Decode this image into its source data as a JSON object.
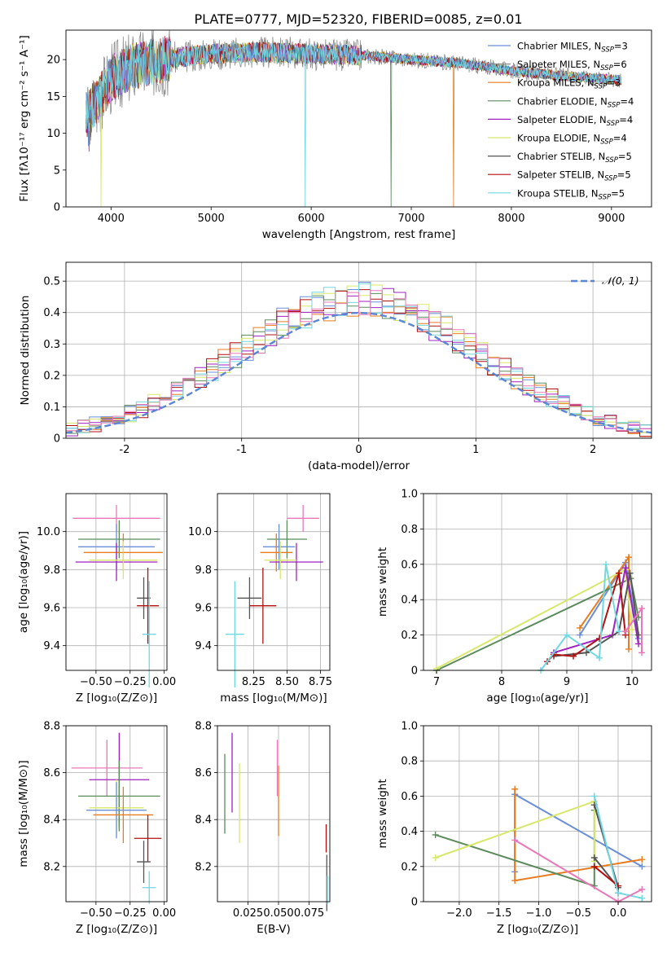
{
  "title": "PLATE=0777, MJD=52320, FIBERID=0085, z=0.01",
  "palette": {
    "Chabrier MILES": "#6a8fd8",
    "Salpeter MILES": "#8c8c8c",
    "Kroupa MILES": "#e87c1e",
    "Chabrier ELODIE": "#5b8a5b",
    "Salpeter ELODIE": "#a020c0",
    "Kroupa ELODIE": "#d8e86a",
    "Chabrier STELIB": "#555555",
    "Salpeter STELIB": "#b01010",
    "Kroupa STELIB": "#70d8e0",
    "pink": "#e878b8"
  },
  "chart_data": [
    {
      "id": "spectrum",
      "type": "line",
      "title": "PLATE=0777, MJD=52320, FIBERID=0085, z=0.01",
      "xlabel": "wavelength [Angstrom, rest frame]",
      "ylabel": "Flux [fλ10⁻¹⁷ erg cm⁻² s⁻¹ A⁻¹]",
      "xlim": [
        3550,
        9400
      ],
      "ylim": [
        0,
        24
      ],
      "xticks": [
        4000,
        5000,
        6000,
        7000,
        8000,
        9000
      ],
      "yticks": [
        0,
        5,
        10,
        15,
        20
      ],
      "grid": false,
      "legend_position": "top-right",
      "legend": [
        {
          "model": "Chabrier MILES",
          "n": "3",
          "label_prefix": "Chabrier MILES, N",
          "label_suffix": "=3"
        },
        {
          "model": "Salpeter MILES",
          "n": "6",
          "label_prefix": "Salpeter MILES, N",
          "label_suffix": "=6"
        },
        {
          "model": "Kroupa MILES",
          "n": "3",
          "label_prefix": "Kroupa MILES, N",
          "label_suffix": "=3"
        },
        {
          "model": "Chabrier ELODIE",
          "n": "4",
          "label_prefix": "Chabrier ELODIE, N",
          "label_suffix": "=4"
        },
        {
          "model": "Salpeter ELODIE",
          "n": "4",
          "label_prefix": "Salpeter ELODIE, N",
          "label_suffix": "=4"
        },
        {
          "model": "Kroupa ELODIE",
          "n": "4",
          "label_prefix": "Kroupa ELODIE, N",
          "label_suffix": "=4"
        },
        {
          "model": "Chabrier STELIB",
          "n": "5",
          "label_prefix": "Chabrier STELIB, N",
          "label_suffix": "=5"
        },
        {
          "model": "Salpeter STELIB",
          "n": "5",
          "label_prefix": "Salpeter STELIB, N",
          "label_suffix": "=5"
        },
        {
          "model": "Kroupa STELIB",
          "n": "5",
          "label_prefix": "Kroupa STELIB, N",
          "label_suffix": "=5"
        }
      ],
      "legend_sub": "SSP",
      "continuum": [
        [
          3750,
          13
        ],
        [
          3850,
          14
        ],
        [
          4000,
          17.5
        ],
        [
          4200,
          19
        ],
        [
          4500,
          20
        ],
        [
          5000,
          20.8
        ],
        [
          5500,
          21
        ],
        [
          6000,
          20.8
        ],
        [
          6500,
          20.6
        ],
        [
          7000,
          20
        ],
        [
          7500,
          19.5
        ],
        [
          8000,
          18.5
        ],
        [
          8500,
          17.8
        ],
        [
          9100,
          17.2
        ]
      ],
      "drops": [
        {
          "model": "Kroupa ELODIE",
          "x": 3900
        },
        {
          "model": "Kroupa STELIB",
          "x": 5940
        },
        {
          "model": "Chabrier ELODIE",
          "x": 6800
        },
        {
          "model": "Kroupa MILES",
          "x": 7420
        }
      ]
    },
    {
      "id": "residuals",
      "type": "histogram",
      "xlabel": "(data-model)/error",
      "ylabel": "Normed distribution",
      "xlim": [
        -2.5,
        2.5
      ],
      "ylim": [
        0,
        0.56
      ],
      "xticks": [
        -2,
        -1,
        0,
        1,
        2
      ],
      "yticks": [
        0.0,
        0.1,
        0.2,
        0.3,
        0.4,
        0.5
      ],
      "grid": true,
      "legend_position": "top-right",
      "gaussian_label": "𝒩(0, 1)",
      "bin_width": 0.1,
      "x_start": -2.5,
      "series": [
        {
          "model": "Chabrier MILES",
          "seed": 1
        },
        {
          "model": "Kroupa MILES",
          "seed": 2
        },
        {
          "model": "Chabrier ELODIE",
          "seed": 3
        },
        {
          "model": "Salpeter ELODIE",
          "seed": 4
        },
        {
          "model": "Kroupa ELODIE",
          "seed": 5
        },
        {
          "model": "Salpeter STELIB",
          "seed": 6
        },
        {
          "model": "Kroupa STELIB",
          "seed": 7
        },
        {
          "model": "pink",
          "seed": 8
        }
      ]
    },
    {
      "id": "z-age",
      "type": "errorbar",
      "xlabel": "Z [log₁₀(Z/Z⊙)]",
      "ylabel": "age  [log₁₀(age/yr)]",
      "xlim": [
        -0.72,
        0.02
      ],
      "ylim": [
        9.27,
        10.2
      ],
      "xticks": [
        -0.5,
        -0.25,
        0.0
      ],
      "xticklabels": [
        "−0.50",
        "−0.25",
        "0.00"
      ],
      "yticks": [
        9.4,
        9.6,
        9.8,
        10.0
      ],
      "grid": true,
      "points": [
        {
          "model": "pink",
          "x": -0.35,
          "xerr": 0.32,
          "y": 10.07,
          "yerr": 0.07
        },
        {
          "model": "Chabrier ELODIE",
          "x": -0.33,
          "xerr": 0.3,
          "y": 9.96,
          "yerr": 0.1
        },
        {
          "model": "Chabrier MILES",
          "x": -0.35,
          "xerr": 0.28,
          "y": 9.92,
          "yerr": 0.12
        },
        {
          "model": "Kroupa MILES",
          "x": -0.3,
          "xerr": 0.29,
          "y": 9.89,
          "yerr": 0.1
        },
        {
          "model": "Salpeter ELODIE",
          "x": -0.35,
          "xerr": 0.3,
          "y": 9.84,
          "yerr": 0.1
        },
        {
          "model": "Kroupa ELODIE",
          "x": -0.3,
          "xerr": 0.25,
          "y": 9.85,
          "yerr": 0.1
        },
        {
          "model": "Chabrier STELIB",
          "x": -0.15,
          "xerr": 0.05,
          "y": 9.65,
          "yerr": 0.11
        },
        {
          "model": "Salpeter STELIB",
          "x": -0.12,
          "xerr": 0.08,
          "y": 9.61,
          "yerr": 0.2
        },
        {
          "model": "Kroupa STELIB",
          "x": -0.11,
          "xerr": 0.05,
          "y": 9.46,
          "yerr": 0.28
        }
      ]
    },
    {
      "id": "mass-age",
      "type": "errorbar",
      "xlabel": "mass [log₁₀(M/M⊙)]",
      "ylabel": "",
      "xlim": [
        7.98,
        8.82
      ],
      "ylim": [
        9.27,
        10.2
      ],
      "xticks": [
        8.25,
        8.5,
        8.75
      ],
      "xticklabels": [
        "8.25",
        "8.50",
        "8.75"
      ],
      "yticks": [
        9.4,
        9.6,
        9.8,
        10.0
      ],
      "grid": true,
      "points": [
        {
          "model": "pink",
          "x": 8.62,
          "xerr": 0.12,
          "y": 10.07,
          "yerr": 0.07
        },
        {
          "model": "Chabrier ELODIE",
          "x": 8.5,
          "xerr": 0.15,
          "y": 9.96,
          "yerr": 0.1
        },
        {
          "model": "Chabrier MILES",
          "x": 8.44,
          "xerr": 0.12,
          "y": 9.92,
          "yerr": 0.12
        },
        {
          "model": "Kroupa MILES",
          "x": 8.42,
          "xerr": 0.12,
          "y": 9.89,
          "yerr": 0.1
        },
        {
          "model": "Salpeter ELODIE",
          "x": 8.57,
          "xerr": 0.2,
          "y": 9.84,
          "yerr": 0.1
        },
        {
          "model": "Kroupa ELODIE",
          "x": 8.45,
          "xerr": 0.12,
          "y": 9.85,
          "yerr": 0.1
        },
        {
          "model": "Chabrier STELIB",
          "x": 8.22,
          "xerr": 0.09,
          "y": 9.65,
          "yerr": 0.11
        },
        {
          "model": "Salpeter STELIB",
          "x": 8.32,
          "xerr": 0.1,
          "y": 9.61,
          "yerr": 0.2
        },
        {
          "model": "Kroupa STELIB",
          "x": 8.11,
          "xerr": 0.07,
          "y": 9.46,
          "yerr": 0.28
        }
      ]
    },
    {
      "id": "age-weight",
      "type": "line",
      "xlabel": "age  [log₁₀(age/yr)]",
      "ylabel": "mass weight",
      "xlim": [
        6.8,
        10.3
      ],
      "ylim": [
        0,
        1
      ],
      "xticks": [
        7,
        8,
        9,
        10
      ],
      "yticks": [
        0.0,
        0.2,
        0.4,
        0.6,
        0.8,
        1.0
      ],
      "grid": true,
      "series": [
        {
          "model": "Chabrier MILES",
          "points": [
            [
              9.2,
              0.2
            ],
            [
              9.9,
              0.61
            ],
            [
              10.1,
              0.18
            ]
          ]
        },
        {
          "model": "Kroupa MILES",
          "points": [
            [
              9.2,
              0.24
            ],
            [
              9.95,
              0.64
            ],
            [
              9.95,
              0.12
            ]
          ]
        },
        {
          "model": "Chabrier ELODIE",
          "points": [
            [
              7.0,
              0.0
            ],
            [
              9.98,
              0.52
            ],
            [
              10.1,
              0.3
            ]
          ]
        },
        {
          "model": "Kroupa ELODIE",
          "points": [
            [
              7.0,
              0.01
            ],
            [
              9.9,
              0.57
            ],
            [
              10.0,
              0.23
            ]
          ]
        },
        {
          "model": "Salpeter ELODIE",
          "points": [
            [
              8.8,
              0.1
            ],
            [
              9.7,
              0.2
            ],
            [
              9.9,
              0.58
            ],
            [
              10.1,
              0.15
            ]
          ]
        },
        {
          "model": "Chabrier STELIB",
          "points": [
            [
              8.8,
              0.08
            ],
            [
              9.3,
              0.1
            ],
            [
              9.8,
              0.22
            ],
            [
              9.97,
              0.55
            ],
            [
              10.1,
              0.2
            ]
          ]
        },
        {
          "model": "Salpeter STELIB",
          "points": [
            [
              8.7,
              0.05
            ],
            [
              8.8,
              0.09
            ],
            [
              9.1,
              0.08
            ],
            [
              9.5,
              0.18
            ],
            [
              9.8,
              0.55
            ],
            [
              9.9,
              0.2
            ]
          ]
        },
        {
          "model": "Kroupa STELIB",
          "points": [
            [
              8.6,
              0.0
            ],
            [
              9.0,
              0.2
            ],
            [
              9.5,
              0.07
            ],
            [
              9.6,
              0.6
            ],
            [
              9.8,
              0.22
            ]
          ]
        },
        {
          "model": "pink",
          "points": [
            [
              10.15,
              0.1
            ],
            [
              10.15,
              0.35
            ],
            [
              9.9,
              0.22
            ]
          ]
        }
      ]
    },
    {
      "id": "z-mass",
      "type": "errorbar",
      "xlabel": "Z [log₁₀(Z/Z⊙)]",
      "ylabel": "mass [log₁₀(M/M⊙)]",
      "xlim": [
        -0.72,
        0.02
      ],
      "ylim": [
        8.05,
        8.8
      ],
      "xticks": [
        -0.5,
        -0.25,
        0.0
      ],
      "xticklabels": [
        "−0.50",
        "−0.25",
        "0.00"
      ],
      "yticks": [
        8.2,
        8.4,
        8.6,
        8.8
      ],
      "grid": true,
      "points": [
        {
          "model": "pink",
          "x": -0.42,
          "xerr": 0.26,
          "y": 8.62,
          "yerr": 0.12
        },
        {
          "model": "Salpeter ELODIE",
          "x": -0.33,
          "xerr": 0.22,
          "y": 8.57,
          "yerr": 0.2
        },
        {
          "model": "Chabrier ELODIE",
          "x": -0.33,
          "xerr": 0.3,
          "y": 8.5,
          "yerr": 0.15
        },
        {
          "model": "Kroupa ELODIE",
          "x": -0.35,
          "xerr": 0.2,
          "y": 8.45,
          "yerr": 0.12
        },
        {
          "model": "Chabrier MILES",
          "x": -0.35,
          "xerr": 0.22,
          "y": 8.44,
          "yerr": 0.12
        },
        {
          "model": "Kroupa MILES",
          "x": -0.3,
          "xerr": 0.22,
          "y": 8.42,
          "yerr": 0.12
        },
        {
          "model": "Salpeter STELIB",
          "x": -0.12,
          "xerr": 0.1,
          "y": 8.32,
          "yerr": 0.1
        },
        {
          "model": "Chabrier STELIB",
          "x": -0.15,
          "xerr": 0.05,
          "y": 8.22,
          "yerr": 0.09
        },
        {
          "model": "Kroupa STELIB",
          "x": -0.11,
          "xerr": 0.05,
          "y": 8.11,
          "yerr": 0.07
        }
      ]
    },
    {
      "id": "ebv-mass",
      "type": "errorbar",
      "xlabel": "E(B-V)",
      "ylabel": "",
      "xlim": [
        0.0,
        0.092
      ],
      "ylim": [
        8.05,
        8.8
      ],
      "xticks": [
        0.025,
        0.05,
        0.075
      ],
      "xticklabels": [
        "0.025",
        "0.050",
        "0.075"
      ],
      "yticks": [
        8.2,
        8.4,
        8.6,
        8.8
      ],
      "grid": true,
      "points": [
        {
          "model": "Chabrier ELODIE",
          "x": 0.006,
          "xerr": 0,
          "y": 8.51,
          "yerr": 0.17
        },
        {
          "model": "Salpeter ELODIE",
          "x": 0.012,
          "xerr": 0,
          "y": 8.6,
          "yerr": 0.17
        },
        {
          "model": "Kroupa ELODIE",
          "x": 0.018,
          "xerr": 0,
          "y": 8.47,
          "yerr": 0.17
        },
        {
          "model": "pink",
          "x": 0.049,
          "xerr": 0,
          "y": 8.62,
          "yerr": 0.12
        },
        {
          "model": "Kroupa MILES",
          "x": 0.05,
          "xerr": 0,
          "y": 8.48,
          "yerr": 0.15
        },
        {
          "model": "Salpeter STELIB",
          "x": 0.089,
          "xerr": 0,
          "y": 8.32,
          "yerr": 0.06
        },
        {
          "model": "Chabrier STELIB",
          "x": 0.0895,
          "xerr": 0,
          "y": 8.13,
          "yerr": 0.12
        },
        {
          "model": "Kroupa STELIB",
          "x": 0.09,
          "xerr": 0,
          "y": 8.1,
          "yerr": 0.06
        }
      ]
    },
    {
      "id": "z-weight",
      "type": "line",
      "xlabel": "Z [log₁₀(Z/Z⊙)]",
      "ylabel": "mass weight",
      "xlim": [
        -2.45,
        0.42
      ],
      "ylim": [
        0,
        1
      ],
      "xticks": [
        -2.0,
        -1.5,
        -1.0,
        -0.5,
        0.0
      ],
      "xticklabels": [
        "−2.0",
        "−1.5",
        "−1.0",
        "−0.5",
        "0.0"
      ],
      "yticks": [
        0.0,
        0.2,
        0.4,
        0.6,
        0.8,
        1.0
      ],
      "grid": true,
      "series": [
        {
          "model": "Chabrier MILES",
          "points": [
            [
              -1.3,
              0.17
            ],
            [
              -1.3,
              0.61
            ],
            [
              0.3,
              0.2
            ]
          ]
        },
        {
          "model": "Kroupa MILES",
          "points": [
            [
              -1.3,
              0.64
            ],
            [
              -1.3,
              0.12
            ],
            [
              0.3,
              0.24
            ]
          ]
        },
        {
          "model": "Chabrier ELODIE",
          "points": [
            [
              -2.3,
              0.38
            ],
            [
              -0.3,
              0.09
            ],
            [
              -0.3,
              0.52
            ]
          ]
        },
        {
          "model": "Kroupa ELODIE",
          "points": [
            [
              -2.3,
              0.25
            ],
            [
              -0.3,
              0.57
            ],
            [
              -0.3,
              0.23
            ]
          ]
        },
        {
          "model": "Chabrier STELIB",
          "points": [
            [
              -0.3,
              0.55
            ],
            [
              0.0,
              0.08
            ],
            [
              -0.3,
              0.25
            ]
          ]
        },
        {
          "model": "Salpeter STELIB",
          "points": [
            [
              -0.3,
              0.2
            ],
            [
              0.0,
              0.09
            ],
            [
              0.0,
              0.05
            ]
          ]
        },
        {
          "model": "Kroupa STELIB",
          "points": [
            [
              -0.3,
              0.6
            ],
            [
              0.0,
              0.05
            ],
            [
              0.3,
              0.02
            ]
          ]
        },
        {
          "model": "pink",
          "points": [
            [
              -1.3,
              0.35
            ],
            [
              0.0,
              0.0
            ],
            [
              0.3,
              0.07
            ]
          ]
        }
      ]
    }
  ]
}
